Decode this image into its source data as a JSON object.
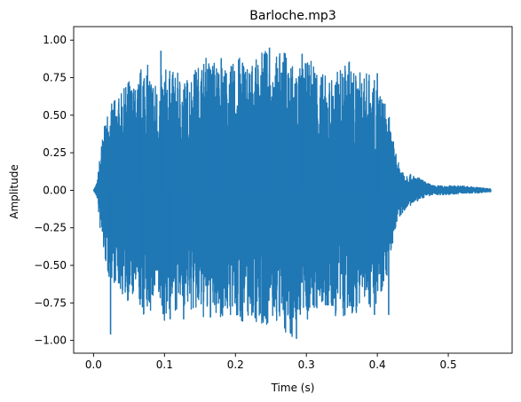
{
  "chart_data": {
    "type": "line",
    "title": "Barloche.mp3",
    "xlabel": "Time (s)",
    "ylabel": "Amplitude",
    "xlim": [
      -0.028,
      0.59
    ],
    "ylim": [
      -1.085,
      1.09
    ],
    "xticks": [
      0.0,
      0.1,
      0.2,
      0.3,
      0.4,
      0.5
    ],
    "xtick_labels": [
      "0.0",
      "0.1",
      "0.2",
      "0.3",
      "0.4",
      "0.5"
    ],
    "yticks": [
      1.0,
      0.75,
      0.5,
      0.25,
      0.0,
      -0.25,
      -0.5,
      -0.75,
      -1.0
    ],
    "ytick_labels": [
      "1.00",
      "0.75",
      "0.50",
      "0.25",
      "0.00",
      "−0.25",
      "−0.50",
      "−0.75",
      "−1.00"
    ],
    "grid": false,
    "series": [
      {
        "color": "#1f77b4",
        "envelope": {
          "t": [
            0.0,
            0.005,
            0.01,
            0.02,
            0.03,
            0.04,
            0.05,
            0.06,
            0.07,
            0.08,
            0.09,
            0.1,
            0.11,
            0.12,
            0.13,
            0.14,
            0.15,
            0.16,
            0.17,
            0.18,
            0.19,
            0.2,
            0.21,
            0.22,
            0.23,
            0.24,
            0.25,
            0.26,
            0.27,
            0.28,
            0.29,
            0.3,
            0.31,
            0.32,
            0.33,
            0.34,
            0.35,
            0.36,
            0.37,
            0.38,
            0.39,
            0.4,
            0.41,
            0.415,
            0.42,
            0.425,
            0.43,
            0.44,
            0.45,
            0.46,
            0.47,
            0.48,
            0.5,
            0.52,
            0.54,
            0.56
          ],
          "max": [
            0.0,
            0.05,
            0.28,
            0.55,
            0.6,
            0.65,
            0.75,
            0.68,
            0.9,
            0.8,
            0.7,
            0.82,
            0.8,
            0.78,
            0.75,
            0.8,
            0.85,
            0.9,
            0.88,
            0.85,
            0.8,
            0.88,
            0.9,
            0.85,
            0.87,
            0.95,
            0.9,
            0.92,
            0.93,
            0.88,
            0.82,
            0.85,
            0.9,
            0.8,
            0.75,
            0.78,
            0.82,
            0.88,
            0.78,
            0.8,
            0.78,
            0.7,
            0.6,
            0.55,
            0.38,
            0.28,
            0.18,
            0.12,
            0.1,
            0.08,
            0.05,
            0.03,
            0.03,
            0.03,
            0.02,
            0.01
          ],
          "min": [
            0.0,
            -0.05,
            -0.3,
            -0.58,
            -0.62,
            -0.7,
            -0.75,
            -0.72,
            -0.85,
            -0.82,
            -0.75,
            -0.88,
            -0.8,
            -0.8,
            -0.78,
            -0.82,
            -0.85,
            -0.88,
            -0.86,
            -0.85,
            -0.82,
            -0.9,
            -0.88,
            -0.85,
            -0.88,
            -0.92,
            -0.88,
            -0.9,
            -0.95,
            -0.99,
            -0.85,
            -0.88,
            -0.82,
            -0.8,
            -0.82,
            -0.85,
            -0.86,
            -0.88,
            -0.82,
            -0.8,
            -0.78,
            -0.75,
            -0.62,
            -0.55,
            -0.4,
            -0.28,
            -0.2,
            -0.12,
            -0.1,
            -0.06,
            -0.04,
            -0.03,
            -0.03,
            -0.02,
            -0.02,
            -0.01
          ]
        },
        "peaks": [
          {
            "t": 0.024,
            "y": -0.96
          },
          {
            "t": 0.03,
            "y": 0.6
          },
          {
            "t": 0.066,
            "y": 0.74
          },
          {
            "t": 0.069,
            "y": -0.78
          },
          {
            "t": 0.095,
            "y": 0.93
          },
          {
            "t": 0.098,
            "y": -0.82
          },
          {
            "t": 0.108,
            "y": -0.86
          },
          {
            "t": 0.127,
            "y": -0.86
          },
          {
            "t": 0.18,
            "y": 0.88
          },
          {
            "t": 0.21,
            "y": 0.85
          },
          {
            "t": 0.248,
            "y": 0.95
          },
          {
            "t": 0.286,
            "y": -0.99
          },
          {
            "t": 0.294,
            "y": 0.91
          },
          {
            "t": 0.36,
            "y": 0.85
          },
          {
            "t": 0.388,
            "y": 0.73
          },
          {
            "t": 0.396,
            "y": -0.83
          },
          {
            "t": 0.4,
            "y": 0.78
          },
          {
            "t": 0.416,
            "y": -0.83
          }
        ]
      }
    ]
  }
}
